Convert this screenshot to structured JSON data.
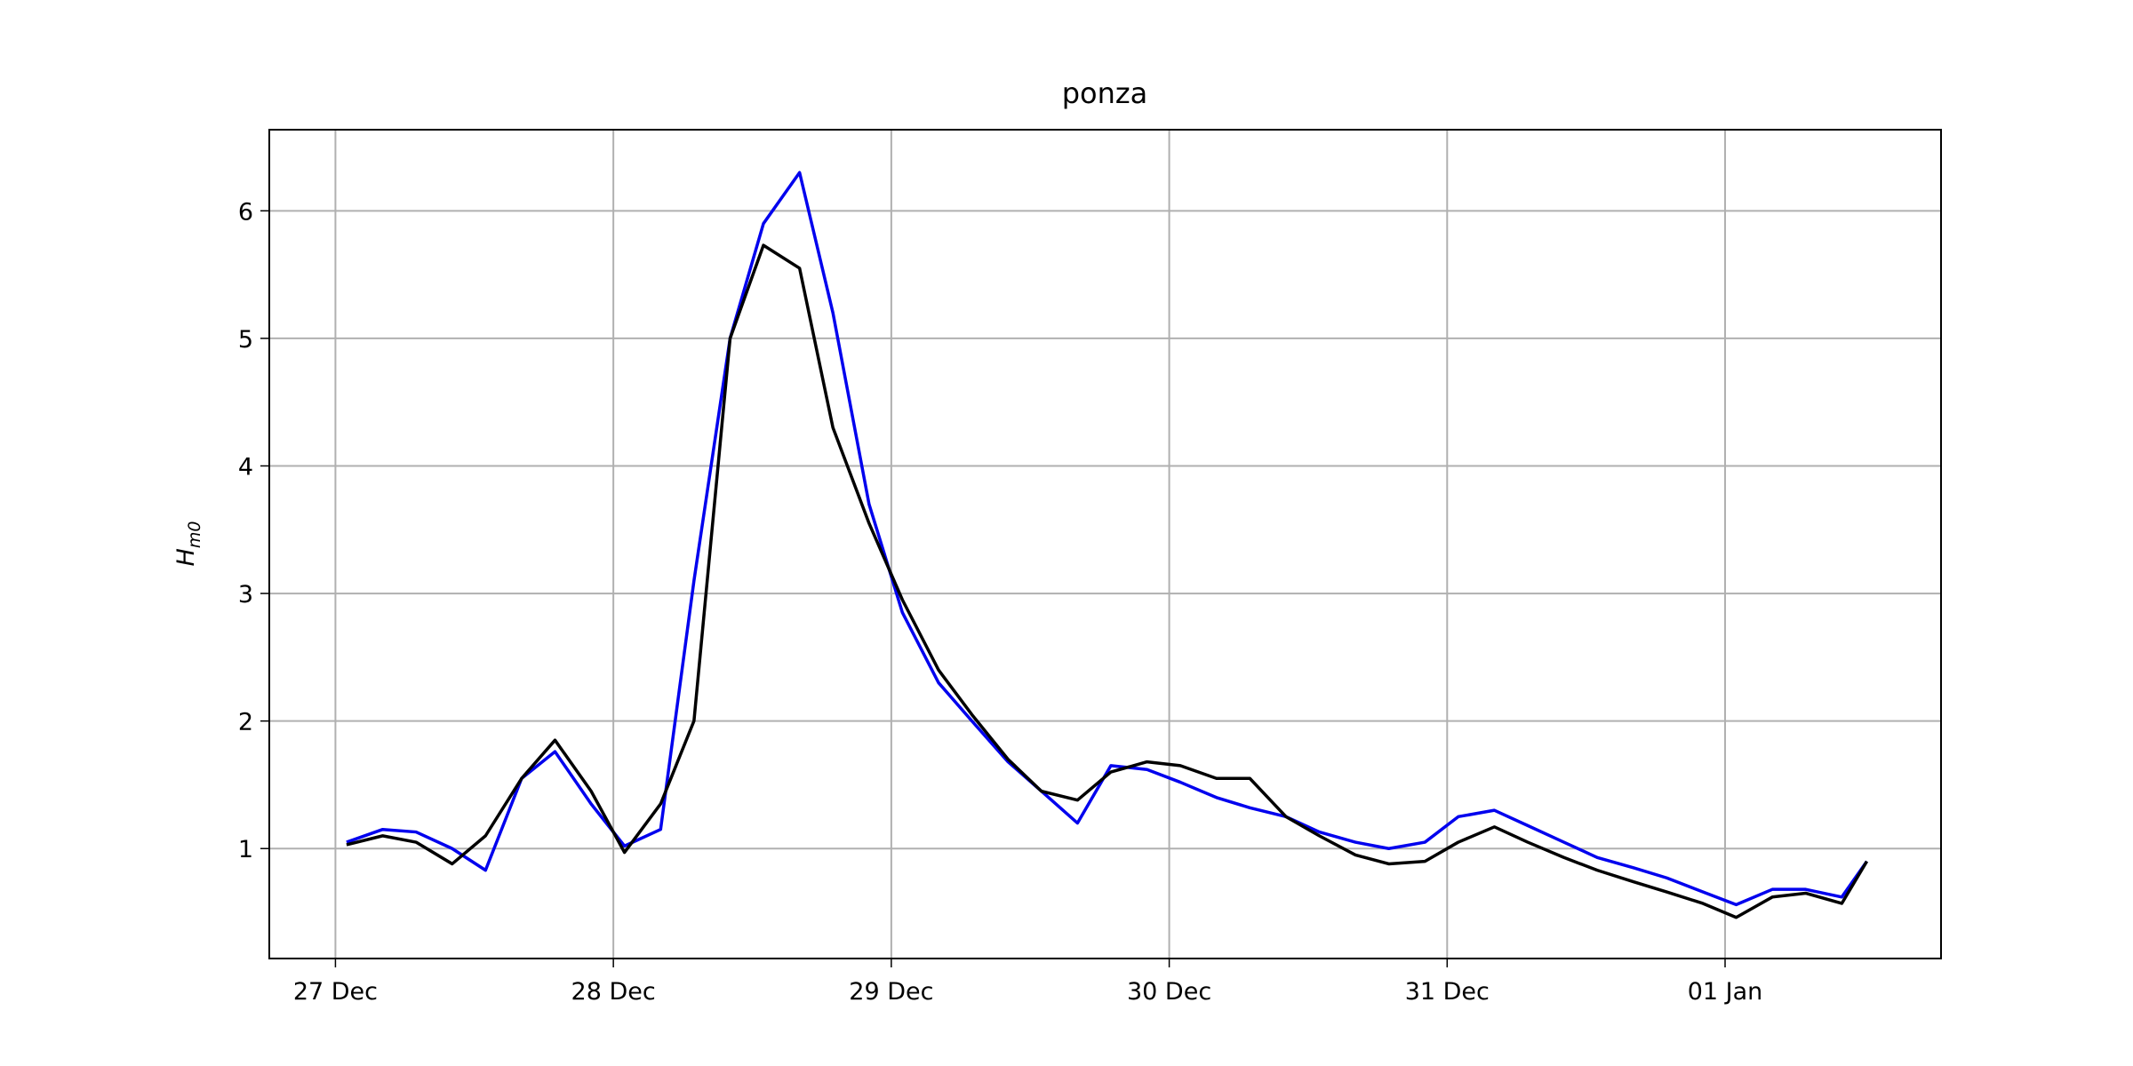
{
  "chart_data": {
    "type": "line",
    "title": "ponza",
    "ylabel": {
      "base": "H",
      "sub": "m0"
    },
    "x": [
      0.04,
      0.17,
      0.29,
      0.42,
      0.54,
      0.67,
      0.79,
      0.92,
      1.04,
      1.17,
      1.29,
      1.42,
      1.54,
      1.67,
      1.79,
      1.92,
      2.04,
      2.17,
      2.29,
      2.42,
      2.54,
      2.67,
      2.79,
      2.92,
      3.04,
      3.17,
      3.29,
      3.42,
      3.54,
      3.67,
      3.79,
      3.92,
      4.04,
      4.17,
      4.29,
      4.42,
      4.54,
      4.67,
      4.79,
      4.92,
      5.04,
      5.17,
      5.29,
      5.42,
      5.51
    ],
    "series": [
      {
        "color": "#0000ee",
        "values": [
          1.05,
          1.15,
          1.13,
          1.0,
          0.83,
          1.55,
          1.76,
          1.35,
          1.02,
          1.15,
          3.1,
          5.0,
          5.9,
          6.3,
          5.2,
          3.7,
          2.85,
          2.3,
          2.0,
          1.68,
          1.45,
          1.2,
          1.65,
          1.62,
          1.52,
          1.4,
          1.32,
          1.25,
          1.13,
          1.05,
          1.0,
          1.05,
          1.25,
          1.3,
          1.18,
          1.05,
          0.93,
          0.85,
          0.77,
          0.66,
          0.56,
          0.68,
          0.68,
          0.62,
          0.9
        ]
      },
      {
        "color": "#000000",
        "values": [
          1.03,
          1.1,
          1.05,
          0.88,
          1.1,
          1.55,
          1.85,
          1.45,
          0.97,
          1.35,
          2.0,
          5.0,
          5.73,
          5.55,
          4.3,
          3.55,
          2.95,
          2.4,
          2.05,
          1.7,
          1.45,
          1.38,
          1.6,
          1.68,
          1.65,
          1.55,
          1.55,
          1.25,
          1.1,
          0.95,
          0.88,
          0.9,
          1.05,
          1.17,
          1.05,
          0.93,
          0.83,
          0.74,
          0.66,
          0.57,
          0.46,
          0.62,
          0.65,
          0.57,
          0.9
        ]
      }
    ],
    "xlim": [
      -0.238,
      5.777
    ],
    "xticks": [
      {
        "value": 0,
        "label": "27 Dec"
      },
      {
        "value": 1,
        "label": "28 Dec"
      },
      {
        "value": 2,
        "label": "29 Dec"
      },
      {
        "value": 3,
        "label": "30 Dec"
      },
      {
        "value": 4,
        "label": "31 Dec"
      },
      {
        "value": 5,
        "label": "01 Jan"
      }
    ],
    "ylim": [
      0.138,
      6.636
    ],
    "yticks": [
      1,
      2,
      3,
      4,
      5,
      6
    ],
    "grid": true
  }
}
